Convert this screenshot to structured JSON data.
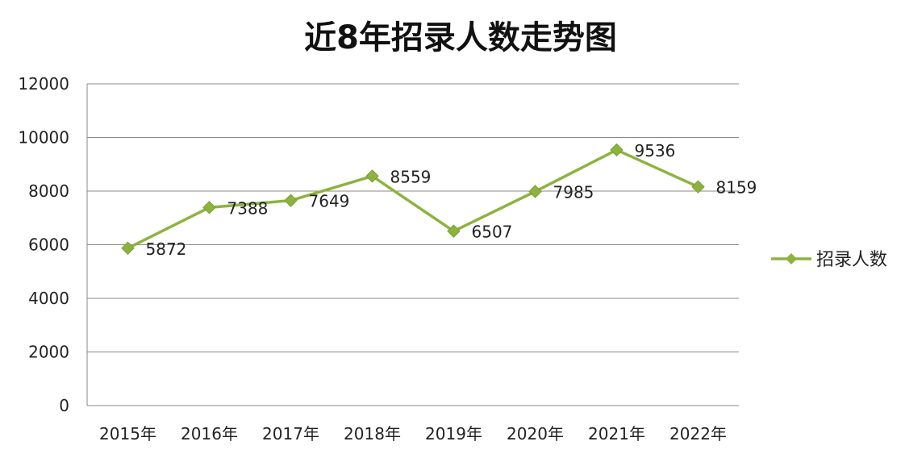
{
  "chart_data": {
    "type": "line",
    "title": "近8年招录人数走势图",
    "categories": [
      "2015年",
      "2016年",
      "2017年",
      "2018年",
      "2019年",
      "2020年",
      "2021年",
      "2022年"
    ],
    "series": [
      {
        "name": "招录人数",
        "values": [
          5872,
          7388,
          7649,
          8559,
          6507,
          7985,
          9536,
          8159
        ]
      }
    ],
    "ylim": [
      0,
      12000
    ],
    "yticks": [
      0,
      2000,
      4000,
      6000,
      8000,
      10000,
      12000
    ],
    "grid": true,
    "legend": "right",
    "colors": {
      "series": "#8db33f",
      "grid": "#888888"
    }
  }
}
